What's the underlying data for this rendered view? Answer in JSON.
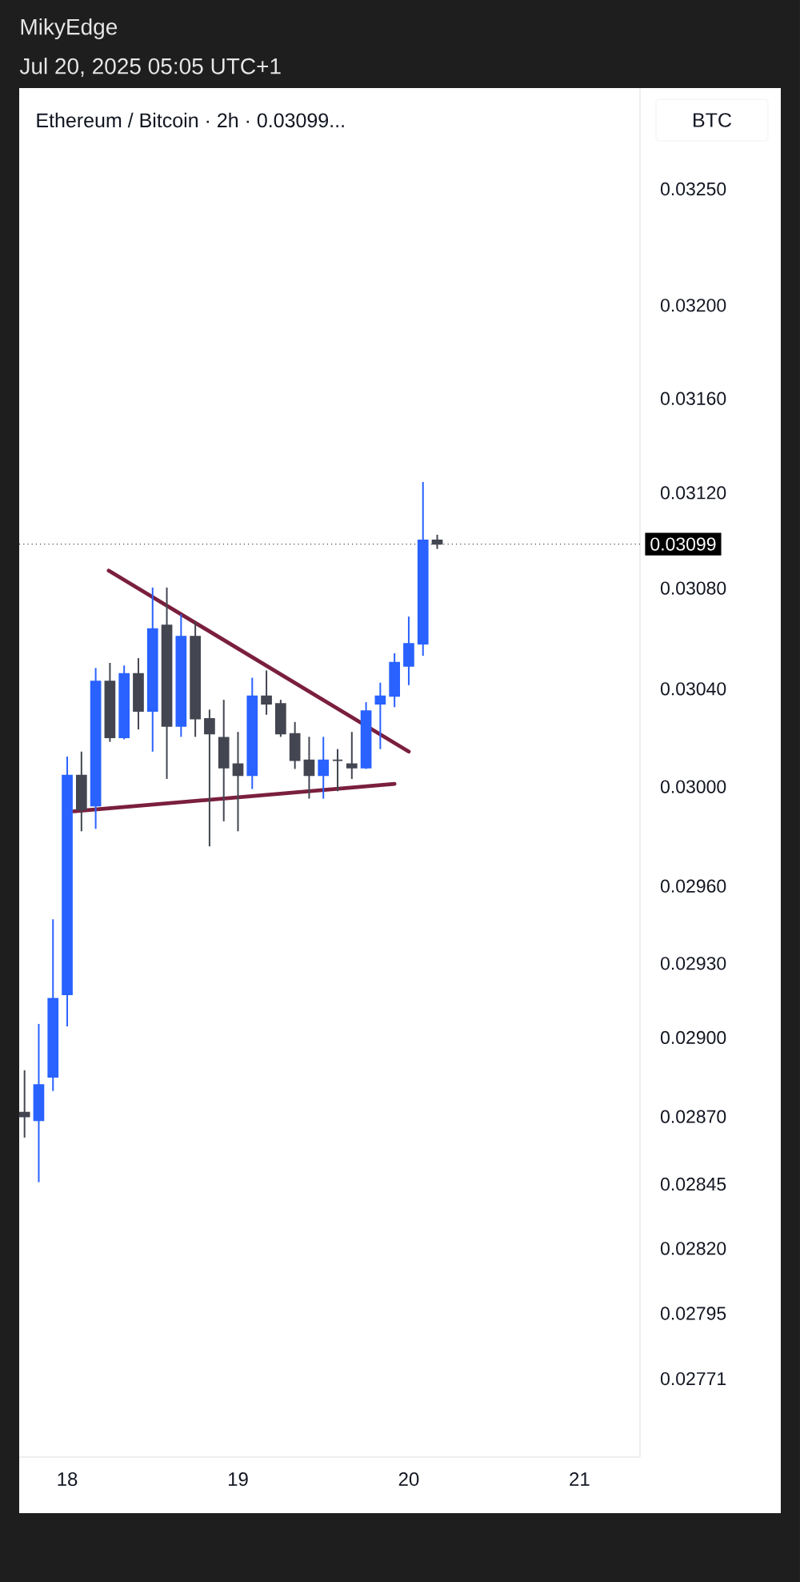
{
  "chart_data": {
    "type": "candlestick",
    "title": "Ethereum / Bitcoin · 2h · 0.03099...",
    "ylabel": "BTC",
    "annotations": [
      "MikyEdge",
      "Jul 20, 2025 05:05 UTC+1"
    ],
    "log": true,
    "x": [
      "2025-07-17T18:00",
      "2025-07-17T20:00",
      "2025-07-17T22:00",
      "2025-07-18T00:00",
      "2025-07-18T02:00",
      "2025-07-18T04:00",
      "2025-07-18T06:00",
      "2025-07-18T08:00",
      "2025-07-18T10:00",
      "2025-07-18T12:00",
      "2025-07-18T14:00",
      "2025-07-18T16:00",
      "2025-07-18T18:00",
      "2025-07-18T20:00",
      "2025-07-18T22:00",
      "2025-07-19T00:00",
      "2025-07-19T02:00",
      "2025-07-19T04:00",
      "2025-07-19T06:00",
      "2025-07-19T08:00",
      "2025-07-19T10:00",
      "2025-07-19T12:00",
      "2025-07-19T14:00",
      "2025-07-19T16:00",
      "2025-07-19T18:00",
      "2025-07-19T20:00",
      "2025-07-19T22:00",
      "2025-07-20T00:00",
      "2025-07-20T02:00",
      "2025-07-20T04:00"
    ],
    "ohlc": [
      [
        0.02871,
        0.02888,
        0.02862,
        0.0287
      ],
      [
        0.02868,
        0.02906,
        0.02845,
        0.02883
      ],
      [
        0.02885,
        0.02947,
        0.0288,
        0.02916
      ],
      [
        0.02917,
        0.03012,
        0.02905,
        0.03004
      ],
      [
        0.03004,
        0.03014,
        0.02982,
        0.02991
      ],
      [
        0.02992,
        0.03048,
        0.02983,
        0.03043
      ],
      [
        0.03042,
        0.0305,
        0.03018,
        0.0302
      ],
      [
        0.0302,
        0.03049,
        0.03019,
        0.03045
      ],
      [
        0.03045,
        0.03052,
        0.03023,
        0.0303
      ],
      [
        0.03031,
        0.03081,
        0.03014,
        0.03064
      ],
      [
        0.03065,
        0.03081,
        0.03003,
        0.03025
      ],
      [
        0.03025,
        0.0307,
        0.0302,
        0.03061
      ],
      [
        0.03061,
        0.03067,
        0.0302,
        0.03027
      ],
      [
        0.03028,
        0.03031,
        0.02976,
        0.03022
      ],
      [
        0.0302,
        0.03035,
        0.02986,
        0.03008
      ],
      [
        0.03009,
        0.03022,
        0.02982,
        0.03004
      ],
      [
        0.03004,
        0.03044,
        0.02999,
        0.03036
      ],
      [
        0.03037,
        0.03047,
        0.03029,
        0.03034
      ],
      [
        0.03034,
        0.03035,
        0.0302,
        0.03022
      ],
      [
        0.03022,
        0.03026,
        0.03007,
        0.0301
      ],
      [
        0.0301,
        0.0302,
        0.02995,
        0.03004
      ],
      [
        0.03004,
        0.0302,
        0.02995,
        0.0301
      ],
      [
        0.03011,
        0.03015,
        0.02998,
        0.0301
      ],
      [
        0.03009,
        0.03022,
        0.03003,
        0.03008
      ],
      [
        0.03008,
        0.03034,
        0.03007,
        0.03031
      ],
      [
        0.03033,
        0.03042,
        0.03015,
        0.03036
      ],
      [
        0.03036,
        0.03054,
        0.03032,
        0.0305
      ],
      [
        0.03049,
        0.03069,
        0.03041,
        0.03058
      ],
      [
        0.03058,
        0.03125,
        0.03053,
        0.03101
      ],
      [
        0.031,
        0.03103,
        0.03097,
        0.03099
      ]
    ],
    "colors": [
      "#434651",
      "#2962ff",
      "#2962ff",
      "#2962ff",
      "#434651",
      "#2962ff",
      "#434651",
      "#2962ff",
      "#434651",
      "#2962ff",
      "#434651",
      "#2962ff",
      "#434651",
      "#434651",
      "#434651",
      "#434651",
      "#2962ff",
      "#434651",
      "#434651",
      "#434651",
      "#434651",
      "#2962ff",
      "#434651",
      "#434651",
      "#2962ff",
      "#2962ff",
      "#2962ff",
      "#2962ff",
      "#2962ff",
      "#434651"
    ],
    "series": [
      {
        "type": "line",
        "color": "#7a1f3d",
        "x": [
          "2025-07-18T05:50",
          "2025-07-20T00:00"
        ],
        "values": [
          0.03088,
          0.03014
        ]
      },
      {
        "type": "line",
        "color": "#7a1f3d",
        "x": [
          "2025-07-18T00:55",
          "2025-07-19T22:00"
        ],
        "values": [
          0.0299,
          0.03001
        ]
      }
    ],
    "ref_lines": [
      {
        "axis": "y",
        "value": 0.03099,
        "label": "0.03099",
        "color": "#434651",
        "line_style": "dotted"
      }
    ],
    "xlim": [
      "2025-07-17T17:15",
      "2025-07-21T08:30"
    ],
    "xticks": [
      {
        "value": "2025-07-18",
        "label": "18"
      },
      {
        "value": "2025-07-19",
        "label": "19"
      },
      {
        "value": "2025-07-20",
        "label": "20"
      },
      {
        "value": "2025-07-21",
        "label": "21"
      }
    ],
    "ylim": [
      0.02742,
      0.03294
    ],
    "yticks": [
      {
        "value": 0.0325,
        "label": "0.03250"
      },
      {
        "value": 0.032,
        "label": "0.03200"
      },
      {
        "value": 0.0316,
        "label": "0.03160"
      },
      {
        "value": 0.0312,
        "label": "0.03120"
      },
      {
        "value": 0.0308,
        "label": "0.03080"
      },
      {
        "value": 0.0304,
        "label": "0.03040"
      },
      {
        "value": 0.03,
        "label": "0.03000"
      },
      {
        "value": 0.0296,
        "label": "0.02960"
      },
      {
        "value": 0.0293,
        "label": "0.02930"
      },
      {
        "value": 0.029,
        "label": "0.02900"
      },
      {
        "value": 0.0287,
        "label": "0.02870"
      },
      {
        "value": 0.02845,
        "label": "0.02845"
      },
      {
        "value": 0.0282,
        "label": "0.02820"
      },
      {
        "value": 0.02795,
        "label": "0.02795"
      },
      {
        "value": 0.02771,
        "label": "0.02771"
      }
    ]
  }
}
